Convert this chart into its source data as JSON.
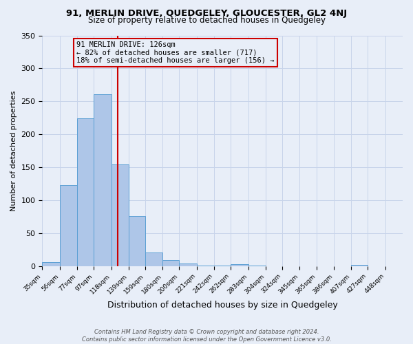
{
  "title1": "91, MERLIN DRIVE, QUEDGELEY, GLOUCESTER, GL2 4NJ",
  "title2": "Size of property relative to detached houses in Quedgeley",
  "xlabel": "Distribution of detached houses by size in Quedgeley",
  "ylabel": "Number of detached properties",
  "footer1": "Contains HM Land Registry data © Crown copyright and database right 2024.",
  "footer2": "Contains public sector information licensed under the Open Government Licence v3.0.",
  "bin_labels": [
    "35sqm",
    "56sqm",
    "77sqm",
    "97sqm",
    "118sqm",
    "139sqm",
    "159sqm",
    "180sqm",
    "200sqm",
    "221sqm",
    "242sqm",
    "262sqm",
    "283sqm",
    "304sqm",
    "324sqm",
    "345sqm",
    "365sqm",
    "386sqm",
    "407sqm",
    "427sqm",
    "448sqm"
  ],
  "bin_edges": [
    35,
    56,
    77,
    97,
    118,
    139,
    159,
    180,
    200,
    221,
    242,
    262,
    283,
    304,
    324,
    345,
    365,
    386,
    407,
    427,
    448
  ],
  "bar_heights": [
    6,
    123,
    224,
    261,
    154,
    76,
    21,
    9,
    4,
    1,
    1,
    3,
    1,
    0,
    0,
    0,
    0,
    0,
    2,
    0,
    0
  ],
  "bar_color": "#aec6e8",
  "bar_edge_color": "#5a9fd4",
  "property_value": 126,
  "vline_color": "#cc0000",
  "annotation_title": "91 MERLIN DRIVE: 126sqm",
  "annotation_line1": "← 82% of detached houses are smaller (717)",
  "annotation_line2": "18% of semi-detached houses are larger (156) →",
  "annotation_box_color": "#cc0000",
  "ylim": [
    0,
    350
  ],
  "yticks": [
    0,
    50,
    100,
    150,
    200,
    250,
    300,
    350
  ],
  "background_color": "#e8eef8",
  "grid_color": "#c8d4ea"
}
